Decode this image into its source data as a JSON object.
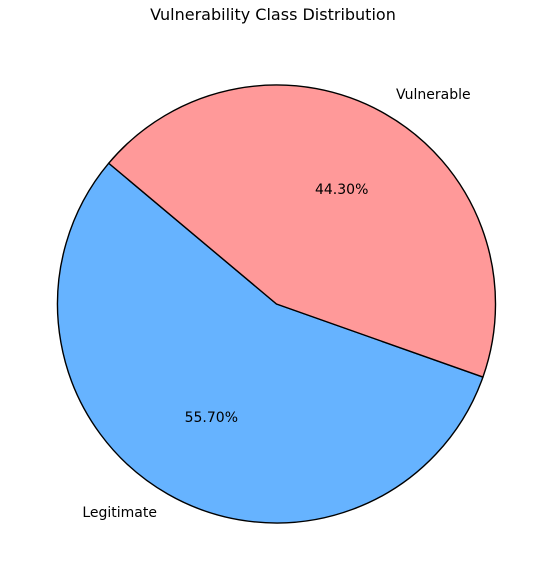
{
  "chart_data": {
    "type": "pie",
    "title": "Vulnerability Class Distribution",
    "start_angle_deg": 140,
    "direction": "counterclockwise",
    "label_format": "0.00%",
    "slices": [
      {
        "label": "Legitimate",
        "value": 55.7,
        "percent_label": "55.70%",
        "color": "#66b3ff"
      },
      {
        "label": "Vulnerable",
        "value": 44.3,
        "percent_label": "44.30%",
        "color": "#ff9999"
      }
    ],
    "edge_color": "#000000",
    "grid": false,
    "legend": "none"
  }
}
